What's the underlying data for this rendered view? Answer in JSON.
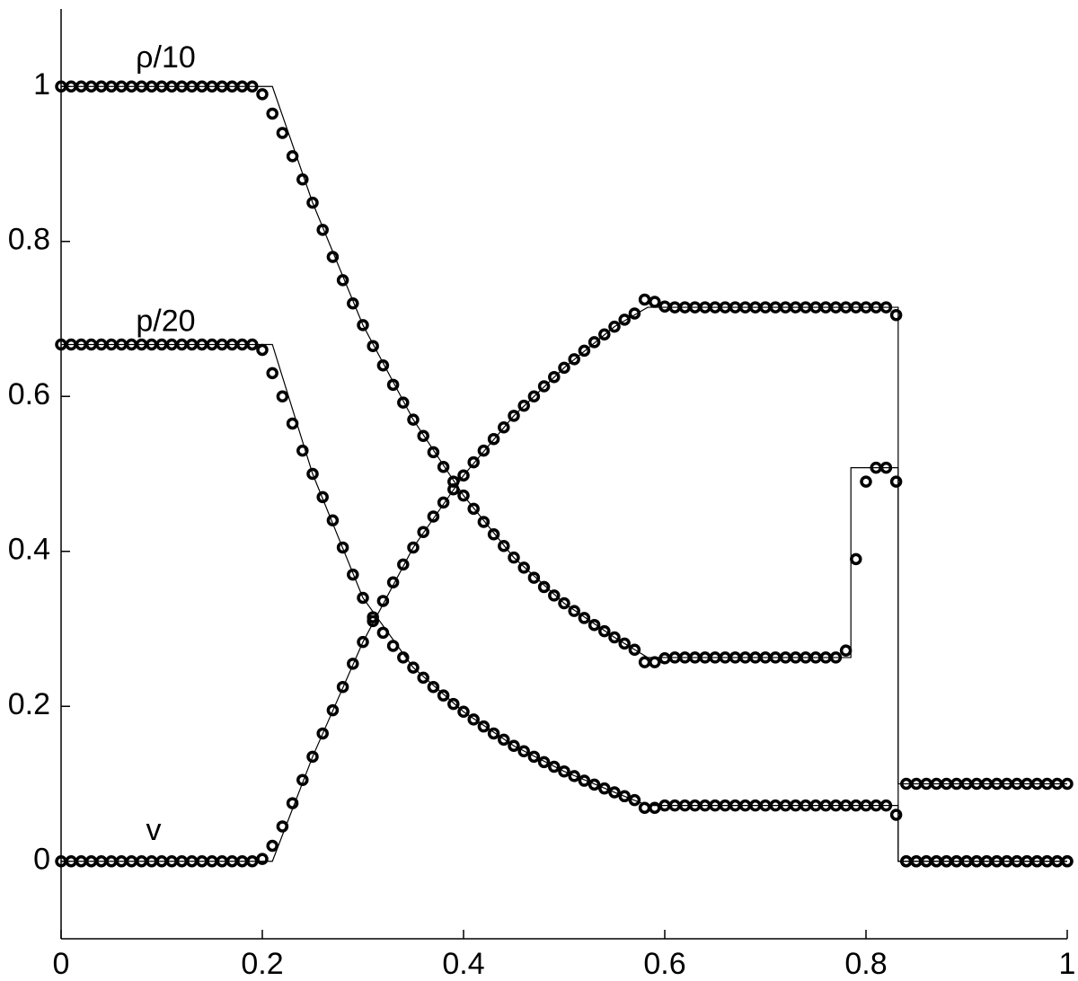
{
  "chart_data": {
    "type": "scatter",
    "annotations": [
      "ρ/10",
      "p/20",
      "v"
    ],
    "x": [
      0,
      0.01,
      0.02,
      0.03,
      0.04,
      0.05,
      0.06,
      0.07,
      0.08,
      0.09,
      0.1,
      0.11,
      0.12,
      0.13,
      0.14,
      0.15,
      0.16,
      0.17,
      0.18,
      0.19,
      0.2,
      0.21,
      0.22,
      0.23,
      0.24,
      0.25,
      0.26,
      0.27,
      0.28,
      0.29,
      0.3,
      0.31,
      0.32,
      0.33,
      0.34,
      0.35,
      0.36,
      0.37,
      0.38,
      0.39,
      0.4,
      0.41,
      0.42,
      0.43,
      0.44,
      0.45,
      0.46,
      0.47,
      0.48,
      0.49,
      0.5,
      0.51,
      0.52,
      0.53,
      0.54,
      0.55,
      0.56,
      0.57,
      0.58,
      0.59,
      0.6,
      0.61,
      0.62,
      0.63,
      0.64,
      0.65,
      0.66,
      0.67,
      0.68,
      0.69,
      0.7,
      0.71,
      0.72,
      0.73,
      0.74,
      0.75,
      0.76,
      0.77,
      0.78,
      0.79,
      0.8,
      0.81,
      0.82,
      0.83,
      0.84,
      0.85,
      0.86,
      0.87,
      0.88,
      0.89,
      0.9,
      0.91,
      0.92,
      0.93,
      0.94,
      0.95,
      0.96,
      0.97,
      0.98,
      0.99,
      1
    ],
    "series": [
      {
        "color": "#000000",
        "values": [
          1,
          1,
          1,
          1,
          1,
          1,
          1,
          1,
          1,
          1,
          1,
          1,
          1,
          1,
          1,
          1,
          1,
          1,
          1,
          1,
          0.99,
          0.965,
          0.94,
          0.91,
          0.88,
          0.85,
          0.815,
          0.78,
          0.75,
          0.72,
          0.692,
          0.665,
          0.64,
          0.615,
          0.592,
          0.57,
          0.549,
          0.528,
          0.509,
          0.49,
          0.472,
          0.455,
          0.438,
          0.422,
          0.407,
          0.392,
          0.379,
          0.366,
          0.354,
          0.343,
          0.333,
          0.323,
          0.314,
          0.305,
          0.297,
          0.289,
          0.281,
          0.273,
          0.257,
          0.257,
          0.262,
          0.263,
          0.263,
          0.263,
          0.263,
          0.263,
          0.263,
          0.263,
          0.263,
          0.263,
          0.263,
          0.263,
          0.263,
          0.263,
          0.263,
          0.263,
          0.263,
          0.263,
          0.272,
          0.39,
          0.49,
          0.508,
          0.508,
          0.49,
          0.1,
          0.1,
          0.1,
          0.1,
          0.1,
          0.1,
          0.1,
          0.1,
          0.1,
          0.1,
          0.1,
          0.1,
          0.1,
          0.1,
          0.1,
          0.1,
          0.1
        ]
      },
      {
        "color": "#000000",
        "values": [
          0.667,
          0.667,
          0.667,
          0.667,
          0.667,
          0.667,
          0.667,
          0.667,
          0.667,
          0.667,
          0.667,
          0.667,
          0.667,
          0.667,
          0.667,
          0.667,
          0.667,
          0.667,
          0.667,
          0.667,
          0.66,
          0.63,
          0.6,
          0.565,
          0.53,
          0.5,
          0.47,
          0.44,
          0.405,
          0.37,
          0.34,
          0.315,
          0.295,
          0.278,
          0.263,
          0.25,
          0.237,
          0.225,
          0.214,
          0.203,
          0.193,
          0.183,
          0.174,
          0.165,
          0.157,
          0.149,
          0.142,
          0.135,
          0.128,
          0.122,
          0.116,
          0.11,
          0.104,
          0.099,
          0.094,
          0.089,
          0.084,
          0.079,
          0.069,
          0.069,
          0.072,
          0.072,
          0.072,
          0.072,
          0.072,
          0.072,
          0.072,
          0.072,
          0.072,
          0.072,
          0.072,
          0.072,
          0.072,
          0.072,
          0.072,
          0.072,
          0.072,
          0.072,
          0.072,
          0.072,
          0.072,
          0.072,
          0.072,
          0.06,
          0,
          0,
          0,
          0,
          0,
          0,
          0,
          0,
          0,
          0,
          0,
          0,
          0,
          0,
          0,
          0,
          0
        ]
      },
      {
        "color": "#000000",
        "values": [
          0,
          0,
          0,
          0,
          0,
          0,
          0,
          0,
          0,
          0,
          0,
          0,
          0,
          0,
          0,
          0,
          0,
          0,
          0,
          0,
          0.003,
          0.02,
          0.045,
          0.075,
          0.105,
          0.135,
          0.165,
          0.195,
          0.225,
          0.255,
          0.283,
          0.31,
          0.336,
          0.36,
          0.383,
          0.405,
          0.425,
          0.445,
          0.463,
          0.48,
          0.498,
          0.515,
          0.53,
          0.545,
          0.56,
          0.575,
          0.588,
          0.6,
          0.613,
          0.625,
          0.637,
          0.648,
          0.659,
          0.67,
          0.68,
          0.69,
          0.699,
          0.707,
          0.725,
          0.722,
          0.716,
          0.715,
          0.715,
          0.715,
          0.715,
          0.715,
          0.715,
          0.715,
          0.715,
          0.715,
          0.715,
          0.715,
          0.715,
          0.715,
          0.715,
          0.715,
          0.715,
          0.715,
          0.715,
          0.715,
          0.715,
          0.715,
          0.715,
          0.705,
          0,
          0,
          0,
          0,
          0,
          0,
          0,
          0,
          0,
          0,
          0,
          0,
          0,
          0,
          0,
          0,
          0
        ]
      }
    ],
    "exact": [
      {
        "x": [
          0,
          0.21,
          0.25,
          0.3,
          0.35,
          0.4,
          0.45,
          0.5,
          0.55,
          0.583,
          0.785,
          0.785,
          0.832,
          0.832,
          1
        ],
        "values": [
          1,
          1,
          0.85,
          0.692,
          0.57,
          0.472,
          0.392,
          0.333,
          0.289,
          0.263,
          0.263,
          0.508,
          0.508,
          0.1,
          0.1
        ]
      },
      {
        "x": [
          0,
          0.21,
          0.25,
          0.3,
          0.35,
          0.4,
          0.45,
          0.5,
          0.55,
          0.583,
          0.832,
          0.832,
          1
        ],
        "values": [
          0.667,
          0.667,
          0.5,
          0.34,
          0.25,
          0.193,
          0.149,
          0.116,
          0.089,
          0.072,
          0.072,
          0,
          0
        ]
      },
      {
        "x": [
          0,
          0.21,
          0.25,
          0.3,
          0.35,
          0.4,
          0.45,
          0.5,
          0.55,
          0.583,
          0.832,
          0.832,
          1
        ],
        "values": [
          0,
          0,
          0.135,
          0.283,
          0.405,
          0.498,
          0.575,
          0.637,
          0.69,
          0.715,
          0.715,
          0,
          0
        ]
      }
    ],
    "xlim": [
      0,
      1
    ],
    "xticks": [
      0,
      0.2,
      0.4,
      0.6,
      0.8,
      1
    ],
    "ylim": [
      -0.1,
      1.1
    ],
    "yticks": [
      0,
      0.2,
      0.4,
      0.6,
      0.8,
      1
    ]
  }
}
